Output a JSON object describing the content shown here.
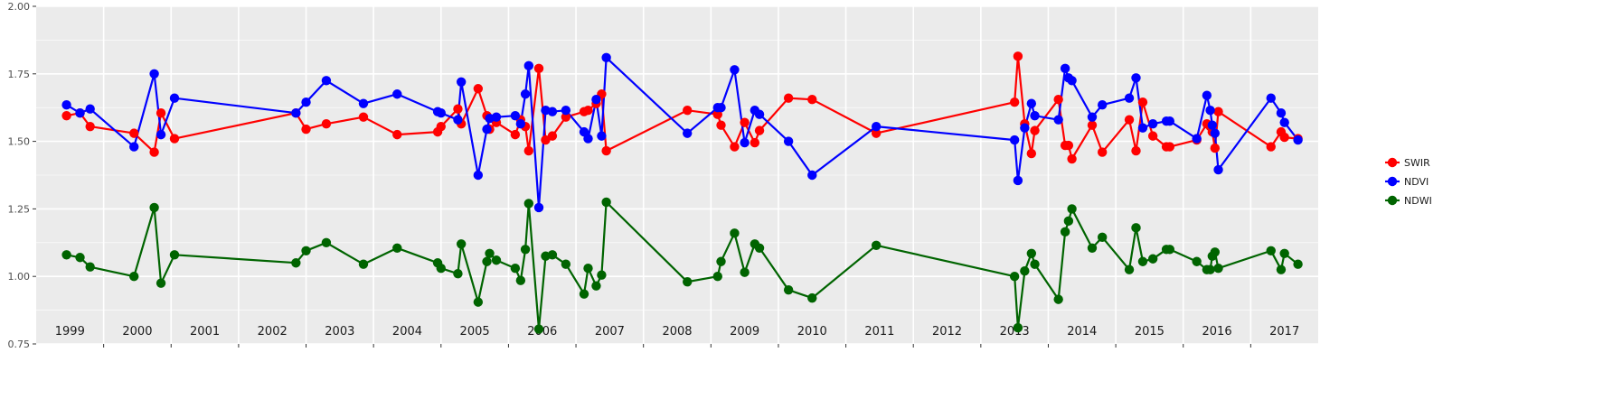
{
  "chart_data": {
    "type": "line",
    "title": "",
    "xlabel": "",
    "ylabel": "",
    "ylim": [
      0.75,
      2.0
    ],
    "y_ticks": [
      "0.75",
      "1.00",
      "1.25",
      "1.50",
      "1.75",
      "2.00"
    ],
    "years": [
      "1999",
      "2000",
      "2001",
      "2002",
      "2003",
      "2004",
      "2005",
      "2006",
      "2007",
      "2008",
      "2009",
      "2010",
      "2011",
      "2012",
      "2013",
      "2014",
      "2015",
      "2016",
      "2017"
    ],
    "grid": true,
    "legend_position": "right",
    "series": [
      {
        "name": "SWIR",
        "color": "#ff0000",
        "x": [
          1998.95,
          1999.15,
          1999.3,
          1999.95,
          2000.25,
          2000.35,
          2000.55,
          2002.35,
          2002.5,
          2002.8,
          2003.35,
          2003.85,
          2004.45,
          2004.5,
          2004.75,
          2004.8,
          2005.05,
          2005.18,
          2005.22,
          2005.32,
          2005.6,
          2005.68,
          2005.75,
          2005.8,
          2005.95,
          2006.05,
          2006.15,
          2006.35,
          2006.62,
          2006.68,
          2006.8,
          2006.88,
          2006.95,
          2008.15,
          2008.6,
          2008.65,
          2008.85,
          2009.0,
          2009.15,
          2009.22,
          2009.65,
          2010.0,
          2010.95,
          2013.0,
          2013.05,
          2013.15,
          2013.25,
          2013.3,
          2013.65,
          2013.75,
          2013.8,
          2013.85,
          2014.15,
          2014.3,
          2014.7,
          2014.8,
          2014.9,
          2015.05,
          2015.25,
          2015.3,
          2015.7,
          2015.85,
          2015.9,
          2015.93,
          2015.97,
          2016.02,
          2016.8,
          2016.95,
          2017.0,
          2017.2
        ],
        "y": [
          1.595,
          1.605,
          1.555,
          1.53,
          1.46,
          1.605,
          1.51,
          1.605,
          1.545,
          1.565,
          1.59,
          1.525,
          1.535,
          1.555,
          1.62,
          1.565,
          1.695,
          1.595,
          1.545,
          1.57,
          1.525,
          1.58,
          1.555,
          1.465,
          1.77,
          1.505,
          1.52,
          1.59,
          1.61,
          1.615,
          1.64,
          1.675,
          1.465,
          1.615,
          1.6,
          1.56,
          1.48,
          1.57,
          1.495,
          1.54,
          1.66,
          1.655,
          1.53,
          1.645,
          1.815,
          1.565,
          1.455,
          1.54,
          1.655,
          1.485,
          1.485,
          1.435,
          1.56,
          1.46,
          1.58,
          1.465,
          1.645,
          1.52,
          1.48,
          1.48,
          1.505,
          1.565,
          1.555,
          1.535,
          1.475,
          1.61,
          1.48,
          1.535,
          1.515,
          1.51
        ]
      },
      {
        "name": "NDVI",
        "color": "#0000ff",
        "x": [
          1998.95,
          1999.15,
          1999.3,
          1999.95,
          2000.25,
          2000.35,
          2000.55,
          2002.35,
          2002.5,
          2002.8,
          2003.35,
          2003.85,
          2004.45,
          2004.5,
          2004.75,
          2004.8,
          2005.05,
          2005.18,
          2005.22,
          2005.32,
          2005.6,
          2005.68,
          2005.75,
          2005.8,
          2005.95,
          2006.05,
          2006.15,
          2006.35,
          2006.62,
          2006.68,
          2006.8,
          2006.88,
          2006.95,
          2008.15,
          2008.6,
          2008.65,
          2008.85,
          2009.0,
          2009.15,
          2009.22,
          2009.65,
          2010.0,
          2010.95,
          2013.0,
          2013.05,
          2013.15,
          2013.25,
          2013.3,
          2013.65,
          2013.75,
          2013.8,
          2013.85,
          2014.15,
          2014.3,
          2014.7,
          2014.8,
          2014.9,
          2015.05,
          2015.25,
          2015.3,
          2015.7,
          2015.85,
          2015.9,
          2015.93,
          2015.97,
          2016.02,
          2016.8,
          2016.95,
          2017.0,
          2017.2
        ],
        "y": [
          1.635,
          1.605,
          1.62,
          1.48,
          1.75,
          1.525,
          1.66,
          1.605,
          1.645,
          1.725,
          1.64,
          1.675,
          1.61,
          1.605,
          1.58,
          1.72,
          1.375,
          1.545,
          1.585,
          1.59,
          1.595,
          1.565,
          1.675,
          1.78,
          1.255,
          1.615,
          1.61,
          1.615,
          1.535,
          1.51,
          1.655,
          1.52,
          1.81,
          1.53,
          1.625,
          1.625,
          1.765,
          1.495,
          1.615,
          1.6,
          1.5,
          1.375,
          1.555,
          1.505,
          1.355,
          1.55,
          1.64,
          1.595,
          1.58,
          1.77,
          1.735,
          1.725,
          1.59,
          1.635,
          1.66,
          1.735,
          1.55,
          1.565,
          1.575,
          1.575,
          1.51,
          1.67,
          1.615,
          1.56,
          1.53,
          1.395,
          1.66,
          1.605,
          1.57,
          1.505
        ]
      },
      {
        "name": "NDWI",
        "color": "#006400",
        "x": [
          1998.95,
          1999.15,
          1999.3,
          1999.95,
          2000.25,
          2000.35,
          2000.55,
          2002.35,
          2002.5,
          2002.8,
          2003.35,
          2003.85,
          2004.45,
          2004.5,
          2004.75,
          2004.8,
          2005.05,
          2005.18,
          2005.22,
          2005.32,
          2005.6,
          2005.68,
          2005.75,
          2005.8,
          2005.95,
          2006.05,
          2006.15,
          2006.35,
          2006.62,
          2006.68,
          2006.8,
          2006.88,
          2006.95,
          2008.15,
          2008.6,
          2008.65,
          2008.85,
          2009.0,
          2009.15,
          2009.22,
          2009.65,
          2010.0,
          2010.95,
          2013.0,
          2013.05,
          2013.15,
          2013.25,
          2013.3,
          2013.65,
          2013.75,
          2013.8,
          2013.85,
          2014.15,
          2014.3,
          2014.7,
          2014.8,
          2014.9,
          2015.05,
          2015.25,
          2015.3,
          2015.7,
          2015.85,
          2015.9,
          2015.93,
          2015.97,
          2016.02,
          2016.8,
          2016.95,
          2017.0,
          2017.2
        ],
        "y": [
          1.08,
          1.07,
          1.035,
          1.0,
          1.255,
          0.975,
          1.08,
          1.05,
          1.095,
          1.125,
          1.045,
          1.105,
          1.05,
          1.03,
          1.01,
          1.12,
          0.905,
          1.055,
          1.085,
          1.06,
          1.03,
          0.985,
          1.1,
          1.27,
          0.805,
          1.075,
          1.08,
          1.045,
          0.935,
          1.03,
          0.965,
          1.005,
          1.275,
          0.98,
          1.0,
          1.055,
          1.16,
          1.015,
          1.12,
          1.105,
          0.95,
          0.92,
          1.115,
          1.0,
          0.81,
          1.02,
          1.085,
          1.045,
          0.915,
          1.165,
          1.205,
          1.25,
          1.105,
          1.145,
          1.025,
          1.18,
          1.055,
          1.065,
          1.1,
          1.1,
          1.055,
          1.025,
          1.025,
          1.075,
          1.09,
          1.03,
          1.095,
          1.025,
          1.085,
          1.045
        ]
      }
    ]
  }
}
